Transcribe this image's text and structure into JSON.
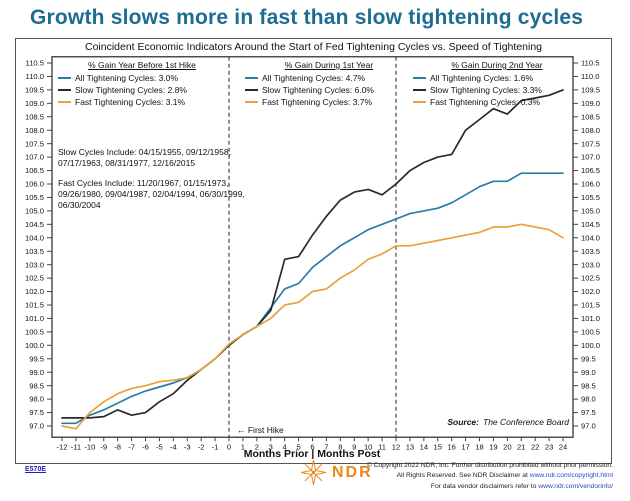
{
  "page_title": "Growth slows more in fast than slow tightening cycles",
  "figure": {
    "header": "Coincident Economic Indicators Around the Start of Fed Tightening Cycles vs. Speed of Tightening",
    "xaxis_title": "Months Prior | Months Post",
    "first_hike_annotation": "←  First Hike",
    "source_label": "Source:",
    "source_value": "The Conference Board"
  },
  "legend_sections": [
    {
      "title": "% Gain Year Before 1st Hike",
      "items": [
        {
          "label": "All Tightening Cycles: 3.0%",
          "color": "#2a7da5"
        },
        {
          "label": "Slow Tightening Cycles: 2.8%",
          "color": "#2a2a2a"
        },
        {
          "label": "Fast Tightening Cycles: 3.1%",
          "color": "#e9a23b"
        }
      ]
    },
    {
      "title": "% Gain During 1st Year",
      "items": [
        {
          "label": "All Tightening Cycles: 4.7%",
          "color": "#2a7da5"
        },
        {
          "label": "Slow Tightening Cycles: 6.0%",
          "color": "#2a2a2a"
        },
        {
          "label": "Fast Tightening Cycles: 3.7%",
          "color": "#e9a23b"
        }
      ]
    },
    {
      "title": "% Gain During 2nd Year",
      "items": [
        {
          "label": "All Tightening Cycles: 1.6%",
          "color": "#2a7da5"
        },
        {
          "label": "Slow Tightening Cycles: 3.3%",
          "color": "#2a2a2a"
        },
        {
          "label": "Fast Tightening Cycles: 0.3%",
          "color": "#e9a23b"
        }
      ]
    }
  ],
  "notes": {
    "slow": "Slow Cycles Include: 04/15/1955, 09/12/1958, 07/17/1963, 08/31/1977, 12/16/2015",
    "fast": "Fast Cycles Include: 11/20/1967, 01/15/1973, 09/26/1980, 09/04/1987, 02/04/1994, 06/30/1999, 06/30/2004"
  },
  "chart_data": {
    "type": "line",
    "title": "Coincident Economic Indicators Around the Start of Fed Tightening Cycles vs. Speed of Tightening",
    "xlabel": "Months Prior | Months Post",
    "ylabel": "",
    "xlim": [
      -12,
      24
    ],
    "ylim": [
      97.0,
      110.5
    ],
    "grid": false,
    "vlines_x": [
      0,
      12
    ],
    "xticks": [
      -12,
      -11,
      -10,
      -9,
      -8,
      -7,
      -6,
      -5,
      -4,
      -3,
      -2,
      -1,
      0,
      1,
      2,
      3,
      4,
      5,
      6,
      7,
      8,
      9,
      10,
      11,
      12,
      13,
      14,
      15,
      16,
      17,
      18,
      19,
      20,
      21,
      22,
      23,
      24
    ],
    "yticks": [
      "110.5",
      "110.0",
      "109.5",
      "109.0",
      "108.5",
      "108.0",
      "107.5",
      "107.0",
      "106.5",
      "106.0",
      "105.5",
      "105.0",
      "104.5",
      "104.0",
      "103.5",
      "103.0",
      "102.5",
      "102.0",
      "101.5",
      "101.0",
      "100.5",
      "100.0",
      "99.5",
      "99.0",
      "98.5",
      "98.0",
      "97.5",
      "97.0"
    ],
    "x": [
      -12,
      -11,
      -10,
      -9,
      -8,
      -7,
      -6,
      -5,
      -4,
      -3,
      -2,
      -1,
      0,
      1,
      2,
      3,
      4,
      5,
      6,
      7,
      8,
      9,
      10,
      11,
      12,
      13,
      14,
      15,
      16,
      17,
      18,
      19,
      20,
      21,
      22,
      23,
      24
    ],
    "series": [
      {
        "name": "All Tightening Cycles",
        "color": "#2a7da5",
        "values": [
          97.1,
          97.1,
          97.4,
          97.6,
          97.85,
          98.1,
          98.3,
          98.45,
          98.6,
          98.8,
          99.1,
          99.5,
          100.0,
          100.4,
          100.7,
          101.4,
          102.1,
          102.3,
          102.9,
          103.3,
          103.7,
          104.0,
          104.3,
          104.5,
          104.7,
          104.9,
          105.0,
          105.1,
          105.3,
          105.6,
          105.9,
          106.1,
          106.1,
          106.4,
          106.4,
          106.4,
          106.4
        ]
      },
      {
        "name": "Slow Tightening Cycles",
        "color": "#2a2a2a",
        "values": [
          97.3,
          97.3,
          97.3,
          97.35,
          97.6,
          97.4,
          97.5,
          97.9,
          98.2,
          98.7,
          99.1,
          99.5,
          100.0,
          100.4,
          100.7,
          101.3,
          103.2,
          103.3,
          104.1,
          104.8,
          105.4,
          105.7,
          105.8,
          105.6,
          106.0,
          106.5,
          106.8,
          107.0,
          107.1,
          108.0,
          108.4,
          108.8,
          108.6,
          109.1,
          109.2,
          109.3,
          109.5
        ]
      },
      {
        "name": "Fast Tightening Cycles",
        "color": "#e9a23b",
        "values": [
          97.0,
          96.9,
          97.5,
          97.9,
          98.2,
          98.4,
          98.5,
          98.65,
          98.7,
          98.8,
          99.1,
          99.5,
          100.05,
          100.4,
          100.7,
          101.0,
          101.5,
          101.6,
          102.0,
          102.1,
          102.5,
          102.8,
          103.2,
          103.4,
          103.7,
          103.7,
          103.8,
          103.9,
          104.0,
          104.1,
          104.2,
          104.4,
          104.4,
          104.5,
          104.4,
          104.3,
          104.0
        ]
      }
    ]
  },
  "footer": {
    "doc_id": "E570E",
    "logo_text": "NDR",
    "copyright_line1": "© Copyright 2022 NDR, Inc. Further distribution prohibited without prior permission.",
    "copyright_line2_prefix": "All Rights Reserved. See NDR Disclaimer at ",
    "copyright_link1": "www.ndr.com/copyright.html",
    "copyright_line3_prefix": "For data vendor disclaimers refer to ",
    "copyright_link2": "www.ndr.com/vendorinfo/"
  }
}
